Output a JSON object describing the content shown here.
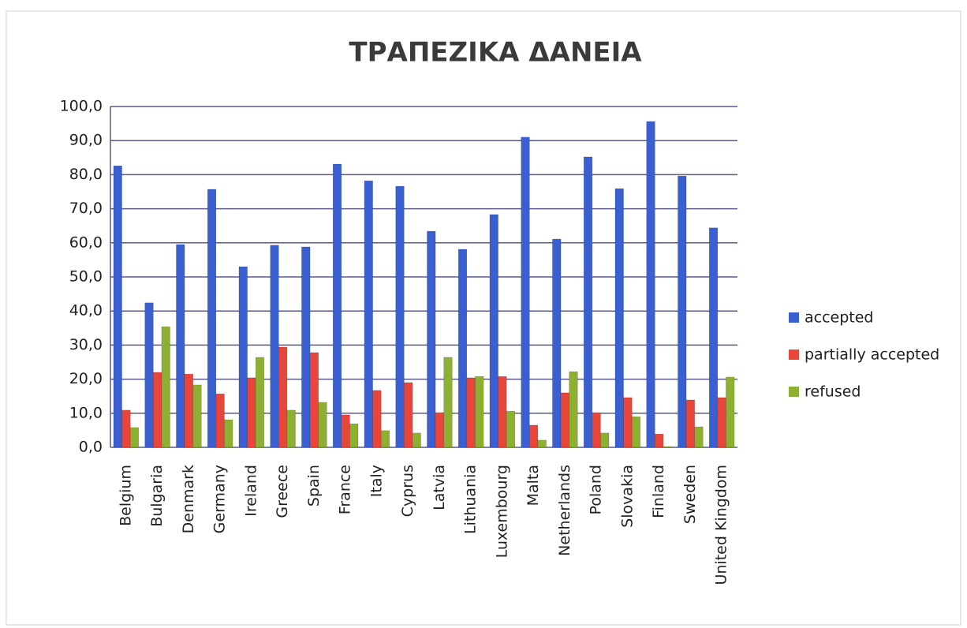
{
  "chart_data": {
    "type": "bar",
    "title": "ΤΡΑΠΕΖΙΚΑ ΔΑΝΕΙΑ",
    "categories": [
      "Belgium",
      "Bulgaria",
      "Denmark",
      "Germany",
      "Ireland",
      "Greece",
      "Spain",
      "France",
      "Italy",
      "Cyprus",
      "Latvia",
      "Lithuania",
      "Luxembourg",
      "Malta",
      "Netherlands",
      "Poland",
      "Slovakia",
      "Finland",
      "Sweden",
      "United Kingdom"
    ],
    "series": [
      {
        "name": "accepted",
        "color": "#3a5fd0",
        "values": [
          82.6,
          42.4,
          59.5,
          75.7,
          53.0,
          59.3,
          58.8,
          83.1,
          78.2,
          76.6,
          63.4,
          58.1,
          68.3,
          91.0,
          61.1,
          85.2,
          75.9,
          95.6,
          79.6,
          64.4
        ]
      },
      {
        "name": "partially accepted",
        "color": "#e8453b",
        "values": [
          10.9,
          22.0,
          21.5,
          15.7,
          20.4,
          29.4,
          27.8,
          9.5,
          16.7,
          19.0,
          10.2,
          20.4,
          20.8,
          6.5,
          16.0,
          10.2,
          14.6,
          3.9,
          13.9,
          14.6
        ]
      },
      {
        "name": "refused",
        "color": "#8db032",
        "values": [
          5.8,
          35.4,
          18.3,
          8.1,
          26.4,
          10.9,
          13.2,
          6.9,
          4.9,
          4.2,
          26.4,
          20.8,
          10.6,
          2.1,
          22.2,
          4.2,
          9.0,
          0.2,
          6.0,
          20.6
        ]
      }
    ],
    "ylim": [
      0,
      100
    ],
    "yticks": [
      {
        "value": 0,
        "label": "0,0"
      },
      {
        "value": 10,
        "label": "10,0"
      },
      {
        "value": 20,
        "label": "20,0"
      },
      {
        "value": 30,
        "label": "30,0"
      },
      {
        "value": 40,
        "label": "40,0"
      },
      {
        "value": 50,
        "label": "50,0"
      },
      {
        "value": 60,
        "label": "60,0"
      },
      {
        "value": 70,
        "label": "70,0"
      },
      {
        "value": 80,
        "label": "80,0"
      },
      {
        "value": 90,
        "label": "90,0"
      },
      {
        "value": 100,
        "label": "100,0"
      }
    ],
    "grid": true,
    "legend": "right"
  }
}
